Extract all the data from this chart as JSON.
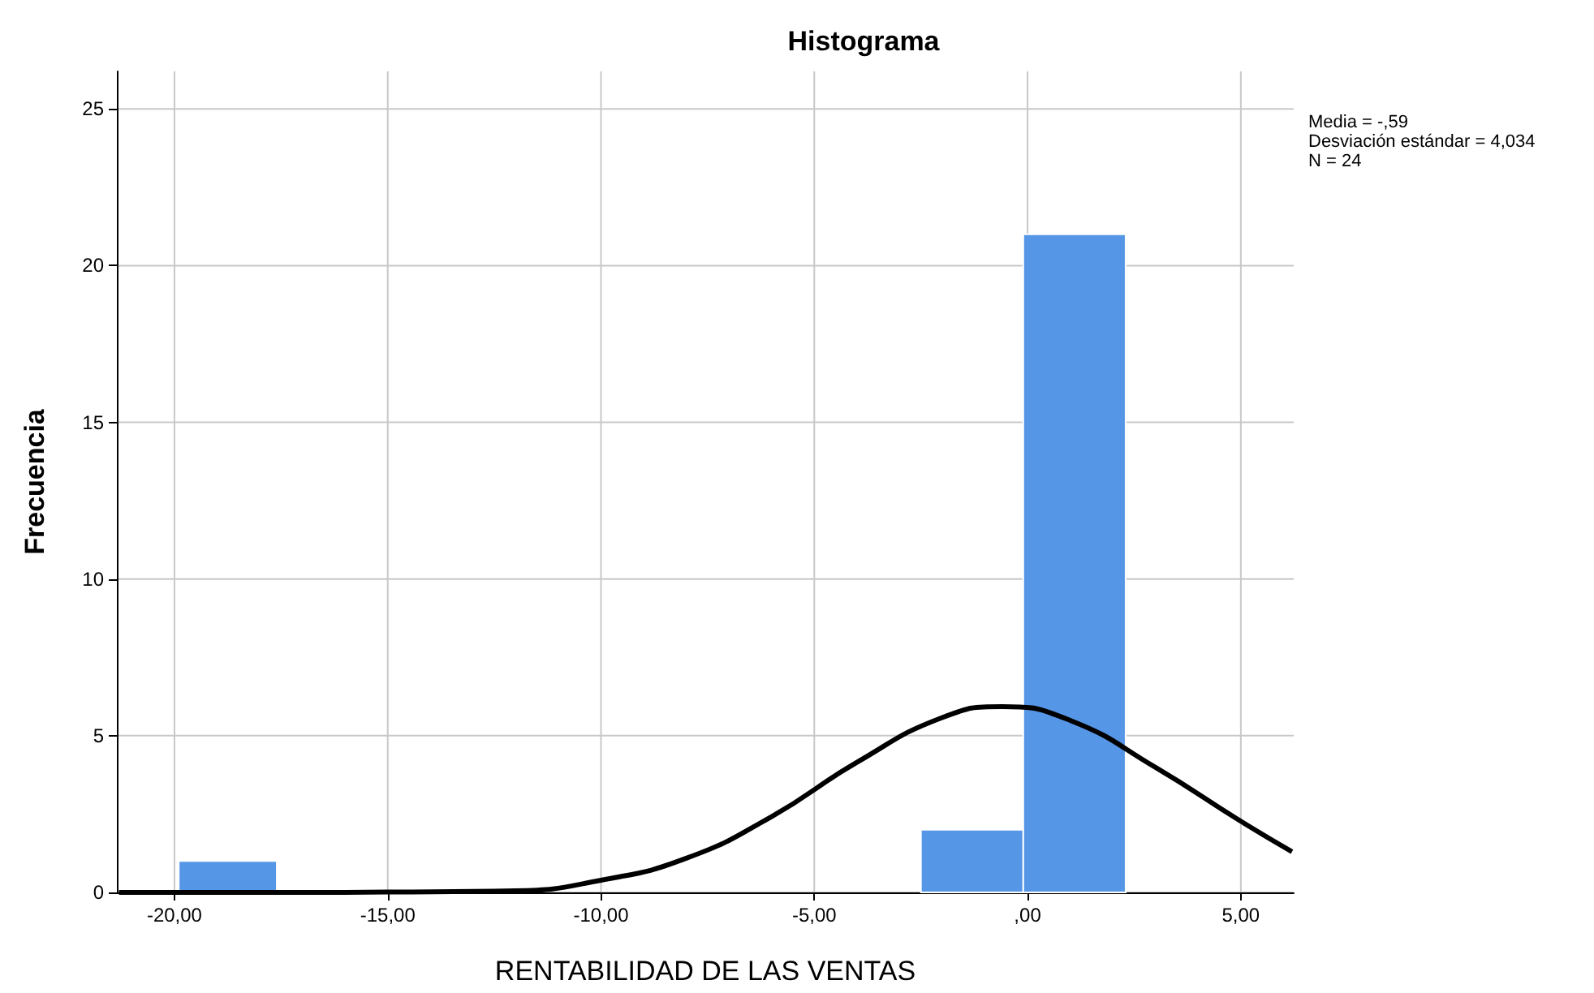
{
  "chart_data": {
    "type": "histogram",
    "title": "Histograma",
    "xlabel": "RENTABILIDAD DE LAS VENTAS",
    "ylabel": "Frecuencia",
    "bins": [
      -19.9,
      -17.6,
      -2.5,
      -0.1,
      2.3
    ],
    "values": [
      1,
      0,
      2,
      21
    ],
    "color": "#5596e6",
    "series": [
      {
        "type": "line",
        "color": "#000000",
        "x": [
          -21.3,
          -20,
          -17,
          -15,
          -12,
          -10,
          -8,
          -6,
          -4,
          -2,
          -0.59,
          1,
          3,
          5,
          6.2
        ],
        "values": [
          0,
          0,
          0,
          0.01,
          0.05,
          0.39,
          1.09,
          2.42,
          4.15,
          5.58,
          5.93,
          5.49,
          3.99,
          2.27,
          1.3
        ]
      }
    ],
    "xlim": [
      -21.35,
      6.24
    ],
    "ylim": [
      0,
      26.2
    ],
    "xticks": [
      {
        "value": -20,
        "label": "-20,00"
      },
      {
        "value": -15,
        "label": "-15,00"
      },
      {
        "value": -10,
        "label": "-10,00"
      },
      {
        "value": -5,
        "label": "-5,00"
      },
      {
        "value": 0,
        "label": ",00"
      },
      {
        "value": 5,
        "label": "5,00"
      }
    ],
    "yticks": [
      0,
      5,
      10,
      15,
      20,
      25
    ],
    "grid": true,
    "marker": "none",
    "annotations": [
      "Media = -,59",
      "Desviación estándar = 4,034",
      "N = 24"
    ]
  }
}
